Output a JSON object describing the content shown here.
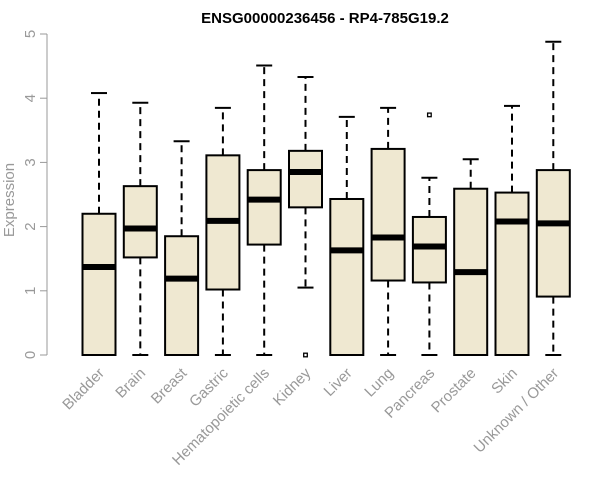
{
  "chart_data": {
    "type": "boxplot",
    "title": "ENSG00000236456 - RP4-785G19.2",
    "ylabel": "Expression",
    "xlabel": "",
    "ylim": [
      0,
      5
    ],
    "yticks": [
      "0",
      "1",
      "2",
      "3",
      "4",
      "5"
    ],
    "grid": false,
    "box_fill": "#efe8d1",
    "box_stroke": "#000000",
    "categories": [
      "Bladder",
      "Brain",
      "Breast",
      "Gastric",
      "Hematopoietic cells",
      "Kidney",
      "Liver",
      "Lung",
      "Pancreas",
      "Prostate",
      "Skin",
      "Unknown / Other"
    ],
    "boxes": [
      {
        "min": 0.0,
        "q1": 0.0,
        "median": 1.37,
        "q3": 2.2,
        "max": 4.08,
        "outliers": []
      },
      {
        "min": 0.0,
        "q1": 1.52,
        "median": 1.97,
        "q3": 2.63,
        "max": 3.93,
        "outliers": []
      },
      {
        "min": 0.0,
        "q1": 0.0,
        "median": 1.19,
        "q3": 1.85,
        "max": 3.33,
        "outliers": []
      },
      {
        "min": 0.0,
        "q1": 1.02,
        "median": 2.09,
        "q3": 3.11,
        "max": 3.85,
        "outliers": []
      },
      {
        "min": 0.0,
        "q1": 1.72,
        "median": 2.42,
        "q3": 2.88,
        "max": 4.51,
        "outliers": []
      },
      {
        "min": 1.05,
        "q1": 2.3,
        "median": 2.85,
        "q3": 3.18,
        "max": 4.33,
        "outliers": [
          0.0
        ]
      },
      {
        "min": 0.0,
        "q1": 0.0,
        "median": 1.63,
        "q3": 2.43,
        "max": 3.71,
        "outliers": []
      },
      {
        "min": 0.0,
        "q1": 1.16,
        "median": 1.83,
        "q3": 3.21,
        "max": 3.85,
        "outliers": []
      },
      {
        "min": 0.0,
        "q1": 1.13,
        "median": 1.69,
        "q3": 2.15,
        "max": 2.76,
        "outliers": [
          3.74
        ]
      },
      {
        "min": 0.0,
        "q1": 0.0,
        "median": 1.29,
        "q3": 2.59,
        "max": 3.05,
        "outliers": []
      },
      {
        "min": 0.0,
        "q1": 0.0,
        "median": 2.08,
        "q3": 2.53,
        "max": 3.88,
        "outliers": []
      },
      {
        "min": 0.0,
        "q1": 0.91,
        "median": 2.05,
        "q3": 2.88,
        "max": 4.88,
        "outliers": []
      }
    ]
  }
}
